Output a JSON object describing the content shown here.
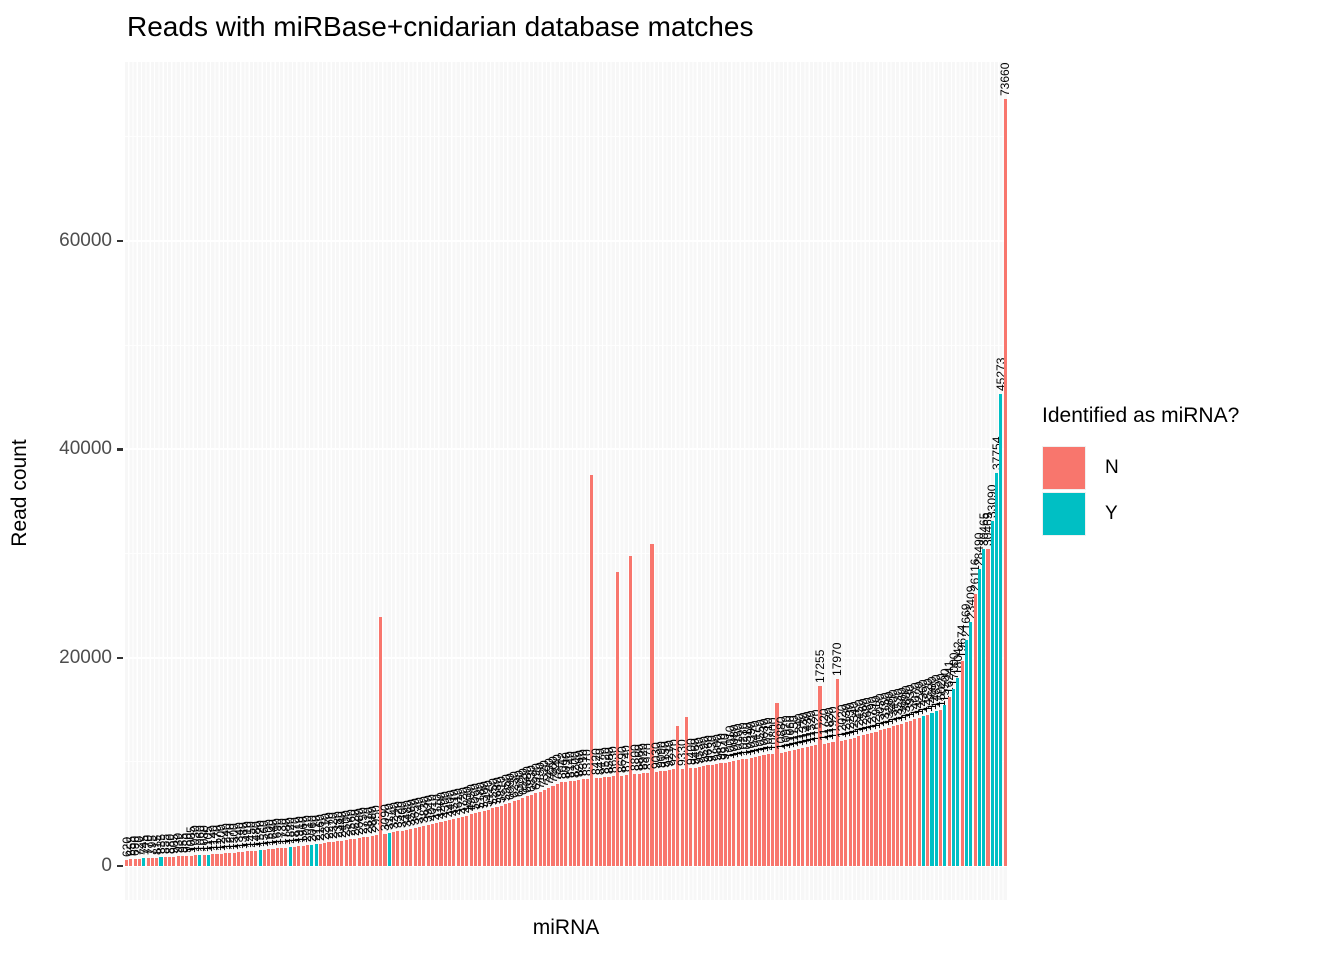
{
  "title": "Reads with miRBase+cnidarian database matches",
  "axes": {
    "x_label": "miRNA",
    "y_label": "Read count",
    "y_tick_labels": [
      "0",
      "20000",
      "40000",
      "60000"
    ],
    "y_tick_values": [
      0,
      20000,
      40000,
      60000
    ],
    "y_minor_values": [
      10000,
      30000,
      50000,
      70000
    ]
  },
  "legend": {
    "title": "Identified as miRNA?",
    "items": [
      {
        "label": "N",
        "color": "#F8766D"
      },
      {
        "label": "Y",
        "color": "#00BFC4"
      }
    ]
  },
  "panel": {
    "background": "#F7F7F7",
    "gridline_color": "#FFFFFF"
  },
  "chart_data": {
    "type": "bar",
    "title": "Reads with miRBase+cnidarian database matches",
    "xlabel": "miRNA",
    "ylabel": "Read count",
    "ylim": [
      0,
      77200
    ],
    "grid": true,
    "legend_title": "Identified as miRNA?",
    "legend_position": "right",
    "groups": {
      "N": "#F8766D",
      "Y": "#00BFC4"
    },
    "values_approximate": true,
    "bar_value_labels_rotated_90": true,
    "notable_labeled_values": [
      8042,
      17255,
      17970,
      18042,
      21669,
      23409,
      28490,
      30465,
      30469,
      33090,
      37754,
      45273,
      73660
    ],
    "hidden_label_indices": [
      59,
      108,
      114,
      117,
      122,
      128,
      130,
      151
    ],
    "bars": [
      [
        620,
        "N"
      ],
      [
        655,
        "N"
      ],
      [
        690,
        "N"
      ],
      [
        720,
        "N"
      ],
      [
        745,
        "Y"
      ],
      [
        770,
        "N"
      ],
      [
        795,
        "N"
      ],
      [
        815,
        "N"
      ],
      [
        835,
        "Y"
      ],
      [
        855,
        "N"
      ],
      [
        880,
        "N"
      ],
      [
        905,
        "N"
      ],
      [
        930,
        "N"
      ],
      [
        955,
        "N"
      ],
      [
        980,
        "N"
      ],
      [
        1005,
        "N"
      ],
      [
        1030,
        "N"
      ],
      [
        1060,
        "Y"
      ],
      [
        1080,
        "N"
      ],
      [
        1105,
        "Y"
      ],
      [
        1140,
        "N"
      ],
      [
        1170,
        "N"
      ],
      [
        1200,
        "N"
      ],
      [
        1240,
        "N"
      ],
      [
        1270,
        "N"
      ],
      [
        1300,
        "N"
      ],
      [
        1340,
        "N"
      ],
      [
        1380,
        "N"
      ],
      [
        1410,
        "N"
      ],
      [
        1450,
        "N"
      ],
      [
        1480,
        "N"
      ],
      [
        1520,
        "Y"
      ],
      [
        1560,
        "N"
      ],
      [
        1600,
        "N"
      ],
      [
        1640,
        "N"
      ],
      [
        1690,
        "N"
      ],
      [
        1730,
        "N"
      ],
      [
        1780,
        "N"
      ],
      [
        1820,
        "Y"
      ],
      [
        1870,
        "N"
      ],
      [
        1910,
        "N"
      ],
      [
        1960,
        "N"
      ],
      [
        2010,
        "N"
      ],
      [
        2060,
        "Y"
      ],
      [
        2110,
        "Y"
      ],
      [
        2160,
        "N"
      ],
      [
        2210,
        "N"
      ],
      [
        2270,
        "N"
      ],
      [
        2320,
        "N"
      ],
      [
        2380,
        "N"
      ],
      [
        2440,
        "N"
      ],
      [
        2500,
        "N"
      ],
      [
        2560,
        "N"
      ],
      [
        2620,
        "N"
      ],
      [
        2680,
        "N"
      ],
      [
        2750,
        "N"
      ],
      [
        2810,
        "N"
      ],
      [
        2880,
        "N"
      ],
      [
        2950,
        "N"
      ],
      [
        23929,
        "N"
      ],
      [
        3090,
        "N"
      ],
      [
        3170,
        "Y"
      ],
      [
        3240,
        "N"
      ],
      [
        3320,
        "N"
      ],
      [
        3400,
        "N"
      ],
      [
        3480,
        "N"
      ],
      [
        3560,
        "N"
      ],
      [
        3650,
        "N"
      ],
      [
        3740,
        "N"
      ],
      [
        3830,
        "N"
      ],
      [
        3920,
        "N"
      ],
      [
        4010,
        "N"
      ],
      [
        4110,
        "N"
      ],
      [
        4200,
        "N"
      ],
      [
        4300,
        "N"
      ],
      [
        4400,
        "N"
      ],
      [
        4510,
        "N"
      ],
      [
        4610,
        "N"
      ],
      [
        4720,
        "N"
      ],
      [
        4830,
        "N"
      ],
      [
        4950,
        "N"
      ],
      [
        5060,
        "N"
      ],
      [
        5180,
        "N"
      ],
      [
        5300,
        "N"
      ],
      [
        5420,
        "N"
      ],
      [
        5550,
        "N"
      ],
      [
        5680,
        "N"
      ],
      [
        5810,
        "N"
      ],
      [
        5950,
        "N"
      ],
      [
        6090,
        "N"
      ],
      [
        6230,
        "N"
      ],
      [
        6380,
        "N"
      ],
      [
        6520,
        "N"
      ],
      [
        6680,
        "N"
      ],
      [
        6830,
        "N"
      ],
      [
        6990,
        "N"
      ],
      [
        7150,
        "N"
      ],
      [
        7320,
        "N"
      ],
      [
        7490,
        "N"
      ],
      [
        7660,
        "N"
      ],
      [
        7840,
        "N"
      ],
      [
        8042,
        "N"
      ],
      [
        8090,
        "N"
      ],
      [
        8140,
        "N"
      ],
      [
        8200,
        "N"
      ],
      [
        8260,
        "N"
      ],
      [
        8310,
        "N"
      ],
      [
        8370,
        "N"
      ],
      [
        37588,
        "N"
      ],
      [
        8420,
        "N"
      ],
      [
        8470,
        "N"
      ],
      [
        8520,
        "N"
      ],
      [
        8580,
        "N"
      ],
      [
        8630,
        "N"
      ],
      [
        28231,
        "N"
      ],
      [
        8690,
        "N"
      ],
      [
        8740,
        "N"
      ],
      [
        29725,
        "N"
      ],
      [
        8800,
        "N"
      ],
      [
        8860,
        "N"
      ],
      [
        8920,
        "N"
      ],
      [
        8970,
        "N"
      ],
      [
        30912,
        "N"
      ],
      [
        9030,
        "N"
      ],
      [
        9090,
        "N"
      ],
      [
        9150,
        "N"
      ],
      [
        9210,
        "N"
      ],
      [
        9270,
        "N"
      ],
      [
        13406,
        "N"
      ],
      [
        9330,
        "N"
      ],
      [
        14329,
        "N"
      ],
      [
        9400,
        "N"
      ],
      [
        9460,
        "N"
      ],
      [
        9530,
        "N"
      ],
      [
        9590,
        "N"
      ],
      [
        9660,
        "N"
      ],
      [
        9730,
        "N"
      ],
      [
        9800,
        "N"
      ],
      [
        9870,
        "N"
      ],
      [
        9940,
        "N"
      ],
      [
        10010,
        "N"
      ],
      [
        10080,
        "N"
      ],
      [
        10160,
        "N"
      ],
      [
        10230,
        "N"
      ],
      [
        10310,
        "N"
      ],
      [
        10390,
        "N"
      ],
      [
        10470,
        "N"
      ],
      [
        10550,
        "N"
      ],
      [
        10630,
        "N"
      ],
      [
        10710,
        "N"
      ],
      [
        10800,
        "N"
      ],
      [
        15630,
        "N"
      ],
      [
        10880,
        "N"
      ],
      [
        10970,
        "N"
      ],
      [
        11060,
        "N"
      ],
      [
        11150,
        "N"
      ],
      [
        11240,
        "N"
      ],
      [
        11330,
        "N"
      ],
      [
        11430,
        "N"
      ],
      [
        11520,
        "N"
      ],
      [
        11620,
        "N"
      ],
      [
        17255,
        "N"
      ],
      [
        11720,
        "N"
      ],
      [
        11820,
        "N"
      ],
      [
        11920,
        "N"
      ],
      [
        17970,
        "N"
      ],
      [
        12020,
        "N"
      ],
      [
        12130,
        "N"
      ],
      [
        12230,
        "N"
      ],
      [
        12340,
        "N"
      ],
      [
        12450,
        "N"
      ],
      [
        12560,
        "N"
      ],
      [
        12680,
        "N"
      ],
      [
        12790,
        "N"
      ],
      [
        12910,
        "N"
      ],
      [
        13030,
        "N"
      ],
      [
        13150,
        "N"
      ],
      [
        13280,
        "N"
      ],
      [
        13400,
        "N"
      ],
      [
        13530,
        "N"
      ],
      [
        13660,
        "N"
      ],
      [
        13800,
        "N"
      ],
      [
        13930,
        "N"
      ],
      [
        14070,
        "N"
      ],
      [
        14220,
        "N"
      ],
      [
        14360,
        "Y"
      ],
      [
        14520,
        "N"
      ],
      [
        14680,
        "Y"
      ],
      [
        14850,
        "Y"
      ],
      [
        15020,
        "N"
      ],
      [
        15500,
        "Y"
      ],
      [
        16241,
        "N"
      ],
      [
        17000,
        "Y"
      ],
      [
        18042,
        "Y"
      ],
      [
        19674,
        "N"
      ],
      [
        21669,
        "Y"
      ],
      [
        23409,
        "Y"
      ],
      [
        26116,
        "N"
      ],
      [
        28490,
        "Y"
      ],
      [
        30465,
        "Y"
      ],
      [
        30469,
        "N"
      ],
      [
        33090,
        "Y"
      ],
      [
        37754,
        "Y"
      ],
      [
        45273,
        "Y"
      ],
      [
        73660,
        "N"
      ]
    ]
  }
}
